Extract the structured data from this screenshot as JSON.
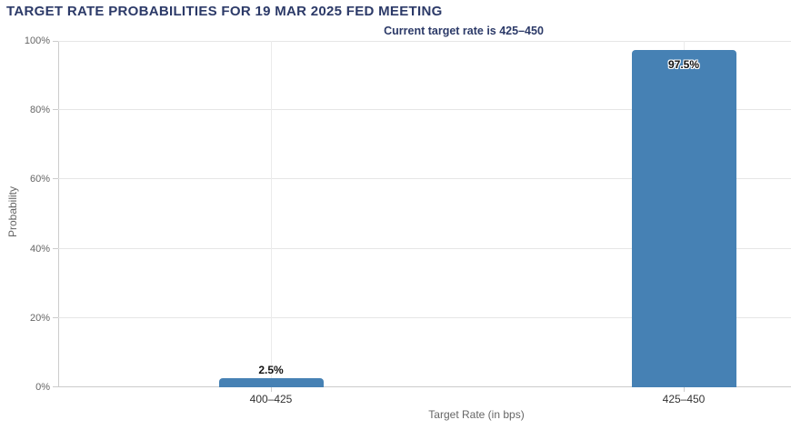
{
  "chart_data": {
    "type": "bar",
    "title": "TARGET RATE PROBABILITIES FOR 19 MAR 2025 FED MEETING",
    "subtitle": "Current target rate is 425–450",
    "xlabel": "Target Rate (in bps)",
    "ylabel": "Probability",
    "categories": [
      "400–425",
      "425–450"
    ],
    "values": [
      2.5,
      97.5
    ],
    "value_labels": [
      "2.5%",
      "97.5%"
    ],
    "ylim": [
      0,
      100
    ],
    "yticks": [
      0,
      20,
      40,
      60,
      80,
      100
    ],
    "ytick_labels": [
      "0%",
      "20%",
      "40%",
      "60%",
      "80%",
      "100%"
    ],
    "grid": true,
    "legend": "none",
    "colors": {
      "bar": "#4681b4",
      "title_text": "#2c3a68",
      "axis_text": "#666666",
      "category_text": "#333333",
      "gridline": "#e6e6e6",
      "axis_line": "#cccccc",
      "background": "#ffffff"
    }
  }
}
